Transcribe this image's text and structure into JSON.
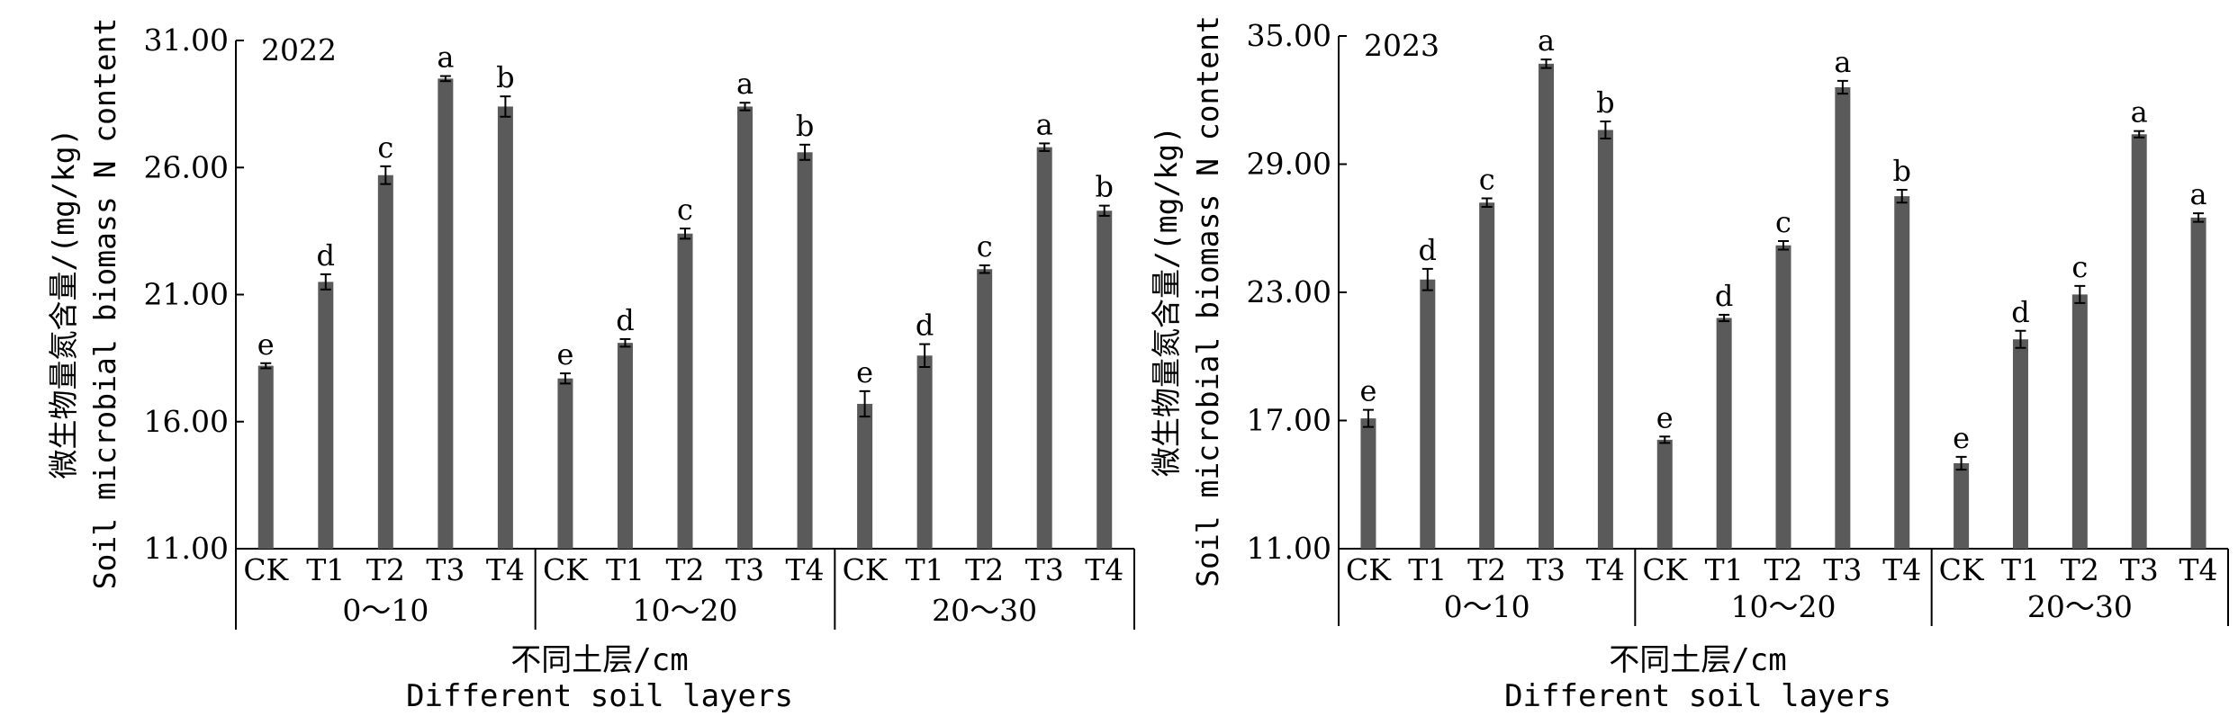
{
  "chart_data": [
    {
      "type": "bar",
      "annotation": "2022",
      "ylabel_cn": "微生物量氮含量/(mg/kg)",
      "ylabel_en": "Soil microbial biomass N content",
      "xlabel_cn": "不同土层/cm",
      "xlabel_en": "Different soil layers",
      "ylim": [
        11,
        31
      ],
      "yticks": [
        "11.00",
        "16.00",
        "21.00",
        "26.00",
        "31.00"
      ],
      "groups": [
        "0～10",
        "10～20",
        "20～30"
      ],
      "categories": [
        "CK",
        "T1",
        "T2",
        "T3",
        "T4"
      ],
      "bar_color": "#5a5a5a",
      "series": [
        {
          "group": "0～10",
          "values": [
            18.2,
            21.5,
            25.7,
            29.5,
            28.4
          ],
          "errors": [
            0.1,
            0.3,
            0.35,
            0.1,
            0.4
          ],
          "letters": [
            "e",
            "d",
            "c",
            "a",
            "b"
          ]
        },
        {
          "group": "10～20",
          "values": [
            17.7,
            19.1,
            23.4,
            28.4,
            26.6
          ],
          "errors": [
            0.2,
            0.15,
            0.2,
            0.15,
            0.3
          ],
          "letters": [
            "e",
            "d",
            "c",
            "a",
            "b"
          ]
        },
        {
          "group": "20～30",
          "values": [
            16.7,
            18.6,
            22.0,
            26.8,
            24.3
          ],
          "errors": [
            0.5,
            0.45,
            0.15,
            0.15,
            0.2
          ],
          "letters": [
            "e",
            "d",
            "c",
            "a",
            "b"
          ]
        }
      ]
    },
    {
      "type": "bar",
      "annotation": "2023",
      "ylabel_cn": "微生物量氮含量/(mg/kg)",
      "ylabel_en": "Soil microbial biomass N content",
      "xlabel_cn": "不同土层/cm",
      "xlabel_en": "Different soil layers",
      "ylim": [
        11,
        35
      ],
      "yticks": [
        "11.00",
        "17.00",
        "23.00",
        "29.00",
        "35.00"
      ],
      "groups": [
        "0～10",
        "10～20",
        "20～30"
      ],
      "categories": [
        "CK",
        "T1",
        "T2",
        "T3",
        "T4"
      ],
      "bar_color": "#5a5a5a",
      "series": [
        {
          "group": "0～10",
          "values": [
            17.1,
            23.6,
            27.2,
            33.7,
            30.6
          ],
          "errors": [
            0.4,
            0.5,
            0.2,
            0.2,
            0.4
          ],
          "letters": [
            "e",
            "d",
            "c",
            "a",
            "b"
          ]
        },
        {
          "group": "10～20",
          "values": [
            16.1,
            21.8,
            25.2,
            32.6,
            27.5
          ],
          "errors": [
            0.15,
            0.15,
            0.2,
            0.3,
            0.3
          ],
          "letters": [
            "e",
            "d",
            "c",
            "a",
            "b"
          ]
        },
        {
          "group": "20～30",
          "values": [
            15.0,
            20.8,
            22.9,
            30.4,
            26.5
          ],
          "errors": [
            0.3,
            0.4,
            0.4,
            0.15,
            0.2
          ],
          "letters": [
            "e",
            "d",
            "c",
            "a",
            "a"
          ]
        }
      ]
    }
  ]
}
